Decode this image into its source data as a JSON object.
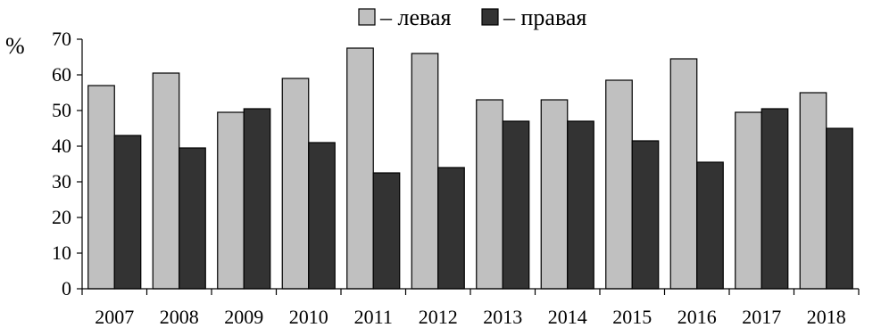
{
  "chart_data": {
    "type": "bar",
    "categories": [
      "2007",
      "2008",
      "2009",
      "2010",
      "2011",
      "2012",
      "2013",
      "2014",
      "2015",
      "2016",
      "2017",
      "2018"
    ],
    "series": [
      {
        "name": "– левая",
        "color": "#c0c0c0",
        "values": [
          57,
          60.5,
          49.5,
          59,
          67.5,
          66,
          53,
          53,
          58.5,
          64.5,
          49.5,
          55
        ]
      },
      {
        "name": "– правая",
        "color": "#333333",
        "values": [
          43,
          39.5,
          50.5,
          41,
          32.5,
          34,
          47,
          47,
          41.5,
          35.5,
          50.5,
          45
        ]
      }
    ],
    "ylabel": "%",
    "ylim": [
      0,
      70
    ],
    "yticks": [
      0,
      10,
      20,
      30,
      40,
      50,
      60,
      70
    ],
    "legend_position": "top-right",
    "grid": false
  }
}
